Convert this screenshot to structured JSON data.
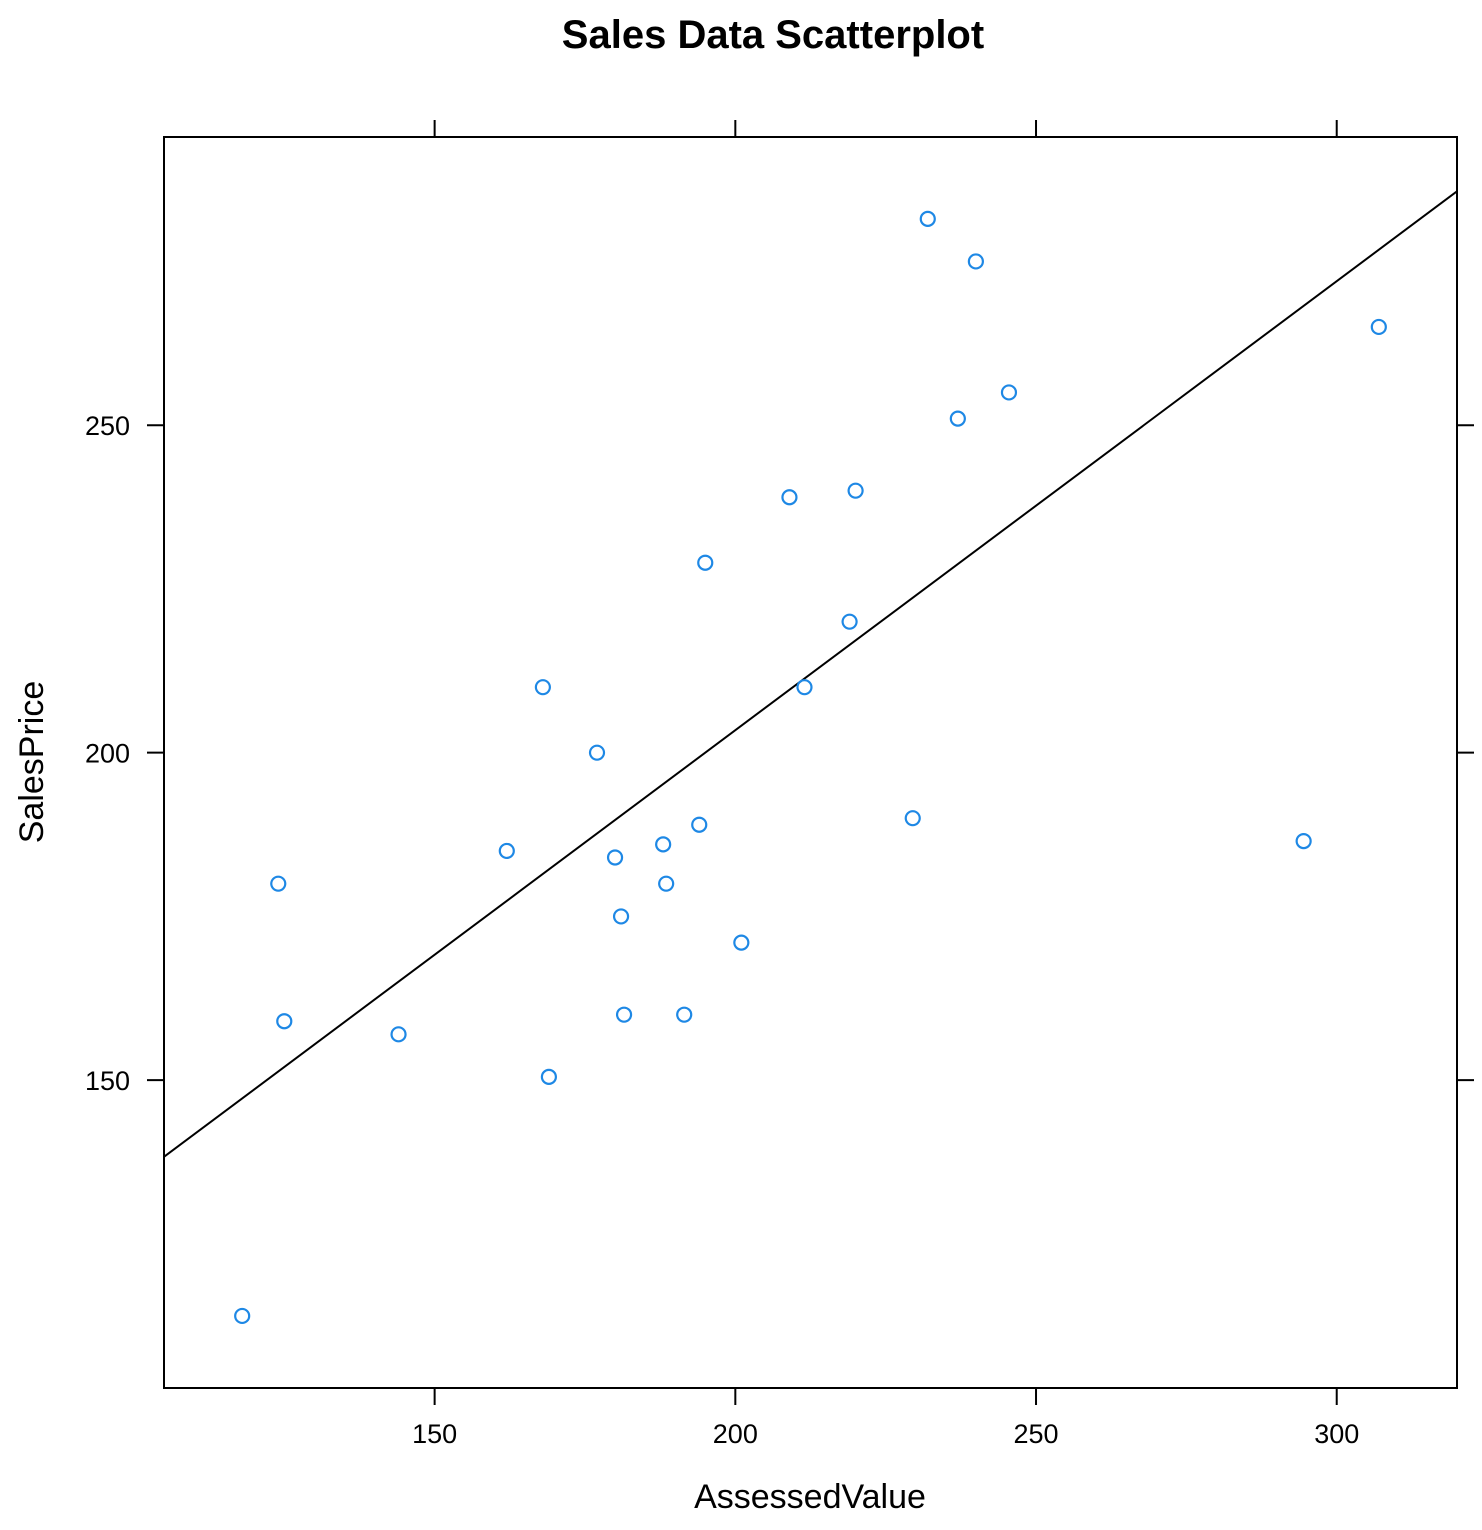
{
  "chart_data": {
    "type": "scatter",
    "title": "Sales Data Scatterplot",
    "xlabel": "AssessedValue",
    "ylabel": "SalesPrice",
    "xlim": [
      105,
      320
    ],
    "ylim": [
      103,
      294
    ],
    "x_ticks": [
      150,
      200,
      250,
      300
    ],
    "y_ticks": [
      150,
      200,
      250
    ],
    "x_tick_labels": [
      "150",
      "200",
      "250",
      "300"
    ],
    "y_tick_labels": [
      "150",
      "200",
      "250"
    ],
    "grid": false,
    "point_color": "#1E88E5",
    "line_color": "#000000",
    "points": [
      {
        "x": 118,
        "y": 114
      },
      {
        "x": 124,
        "y": 180
      },
      {
        "x": 125,
        "y": 159
      },
      {
        "x": 144,
        "y": 157
      },
      {
        "x": 162,
        "y": 185
      },
      {
        "x": 168,
        "y": 210
      },
      {
        "x": 169,
        "y": 150.5
      },
      {
        "x": 177,
        "y": 200
      },
      {
        "x": 180,
        "y": 184
      },
      {
        "x": 181,
        "y": 175
      },
      {
        "x": 181.5,
        "y": 160
      },
      {
        "x": 188,
        "y": 186
      },
      {
        "x": 188.5,
        "y": 180
      },
      {
        "x": 191.5,
        "y": 160
      },
      {
        "x": 194,
        "y": 189
      },
      {
        "x": 195,
        "y": 229
      },
      {
        "x": 201,
        "y": 171
      },
      {
        "x": 209,
        "y": 239
      },
      {
        "x": 211.5,
        "y": 210
      },
      {
        "x": 219,
        "y": 220
      },
      {
        "x": 220,
        "y": 240
      },
      {
        "x": 229.5,
        "y": 190
      },
      {
        "x": 232,
        "y": 281.5
      },
      {
        "x": 237,
        "y": 251
      },
      {
        "x": 240,
        "y": 275
      },
      {
        "x": 245.5,
        "y": 255
      },
      {
        "x": 294.5,
        "y": 186.5
      },
      {
        "x": 307,
        "y": 265
      }
    ],
    "regression_line": {
      "x": [
        105,
        320
      ],
      "y": [
        138.3,
        285.7
      ]
    }
  }
}
